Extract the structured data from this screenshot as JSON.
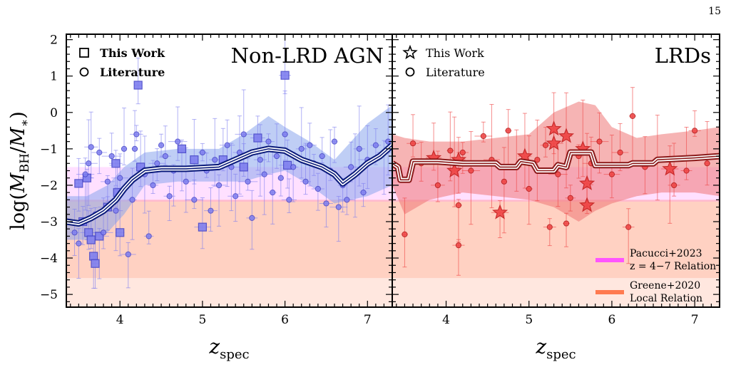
{
  "page_number": "15",
  "colors": {
    "agn_marker": "#7f7fef",
    "agn_band": "#8aa6ec",
    "agn_line": "#0a1a7a",
    "lrd_marker": "#ef4444",
    "lrd_band": "#ee7777",
    "lrd_line": "#8b1a1a",
    "pacucci": "#ff55ff",
    "greene": "#ff7a50"
  },
  "chart_data": [
    {
      "type": "scatter",
      "panel_title": "Non-LRD AGN",
      "legend": [
        {
          "marker": "square",
          "label": "This Work"
        },
        {
          "marker": "circle",
          "label": "Literature"
        }
      ],
      "xlabel": "z_spec",
      "ylabel": "log(M_BH/M_*)",
      "xlim": [
        3.35,
        7.3
      ],
      "ylim": [
        -5.35,
        2.15
      ],
      "xticks": [
        "4",
        "5",
        "6",
        "7"
      ],
      "yticks": [
        "2",
        "1",
        "0",
        "−1",
        "−2",
        "−3",
        "−4",
        "−5"
      ],
      "series": [
        {
          "name": "This Work",
          "marker": "square",
          "points": [
            [
              3.5,
              -1.95
            ],
            [
              3.55,
              -3.0
            ],
            [
              3.6,
              -1.8
            ],
            [
              3.62,
              -3.3
            ],
            [
              3.65,
              -3.5
            ],
            [
              3.68,
              -3.95
            ],
            [
              3.7,
              -4.15
            ],
            [
              3.75,
              -3.4
            ],
            [
              3.85,
              -2.6
            ],
            [
              3.95,
              -1.4
            ],
            [
              3.97,
              -2.2
            ],
            [
              4.0,
              -3.3
            ],
            [
              4.22,
              0.75
            ],
            [
              4.25,
              -1.5
            ],
            [
              4.75,
              -1.0
            ],
            [
              4.9,
              -1.3
            ],
            [
              5.0,
              -3.15
            ],
            [
              5.25,
              -1.3
            ],
            [
              5.5,
              -1.5
            ],
            [
              5.67,
              -0.7
            ],
            [
              6.0,
              1.02
            ],
            [
              6.03,
              -1.45
            ]
          ]
        },
        {
          "name": "Literature",
          "marker": "circle",
          "points": [
            [
              3.45,
              -3.3
            ],
            [
              3.5,
              -3.6
            ],
            [
              3.58,
              -1.7
            ],
            [
              3.62,
              -1.4
            ],
            [
              3.65,
              -0.95
            ],
            [
              3.7,
              -2.8
            ],
            [
              3.75,
              -1.1
            ],
            [
              3.8,
              -3.3
            ],
            [
              3.85,
              -1.9
            ],
            [
              3.9,
              -1.2
            ],
            [
              3.95,
              -2.7
            ],
            [
              4.0,
              -1.8
            ],
            [
              4.05,
              -1.0
            ],
            [
              4.1,
              -3.9
            ],
            [
              4.15,
              -2.4
            ],
            [
              4.18,
              -1.0
            ],
            [
              4.2,
              -0.6
            ],
            [
              4.3,
              -1.7
            ],
            [
              4.35,
              -3.4
            ],
            [
              4.4,
              -2.0
            ],
            [
              4.45,
              -1.4
            ],
            [
              4.5,
              -0.9
            ],
            [
              4.55,
              -1.2
            ],
            [
              4.6,
              -2.3
            ],
            [
              4.65,
              -1.6
            ],
            [
              4.7,
              -0.8
            ],
            [
              4.8,
              -1.9
            ],
            [
              4.9,
              -2.4
            ],
            [
              5.0,
              -1.1
            ],
            [
              5.05,
              -1.6
            ],
            [
              5.1,
              -2.7
            ],
            [
              5.15,
              -1.3
            ],
            [
              5.2,
              -2.0
            ],
            [
              5.3,
              -0.9
            ],
            [
              5.35,
              -1.5
            ],
            [
              5.4,
              -2.3
            ],
            [
              5.45,
              -1.1
            ],
            [
              5.5,
              -0.6
            ],
            [
              5.55,
              -1.9
            ],
            [
              5.6,
              -2.9
            ],
            [
              5.7,
              -1.3
            ],
            [
              5.75,
              -1.7
            ],
            [
              5.8,
              -0.8
            ],
            [
              5.85,
              -2.2
            ],
            [
              5.9,
              -1.2
            ],
            [
              5.95,
              -1.8
            ],
            [
              6.0,
              -0.6
            ],
            [
              6.05,
              -2.4
            ],
            [
              6.1,
              -1.5
            ],
            [
              6.2,
              -1.0
            ],
            [
              6.25,
              -1.9
            ],
            [
              6.3,
              -0.9
            ],
            [
              6.35,
              -1.4
            ],
            [
              6.4,
              -2.1
            ],
            [
              6.45,
              -1.2
            ],
            [
              6.5,
              -2.5
            ],
            [
              6.55,
              -1.6
            ],
            [
              6.6,
              -0.8
            ],
            [
              6.65,
              -2.6
            ],
            [
              6.7,
              -2.0
            ],
            [
              6.75,
              -2.4
            ],
            [
              6.8,
              -1.5
            ],
            [
              6.85,
              -1.7
            ],
            [
              6.9,
              -1.0
            ],
            [
              6.95,
              -2.2
            ],
            [
              7.0,
              -1.3
            ],
            [
              7.1,
              -0.9
            ],
            [
              7.2,
              -1.1
            ],
            [
              7.25,
              -0.8
            ]
          ]
        }
      ],
      "running_median": [
        [
          3.35,
          -3.0
        ],
        [
          3.5,
          -3.05
        ],
        [
          3.65,
          -2.9
        ],
        [
          3.8,
          -2.7
        ],
        [
          3.95,
          -2.4
        ],
        [
          4.05,
          -2.1
        ],
        [
          4.15,
          -1.85
        ],
        [
          4.3,
          -1.6
        ],
        [
          4.5,
          -1.55
        ],
        [
          4.8,
          -1.55
        ],
        [
          5.2,
          -1.5
        ],
        [
          5.4,
          -1.3
        ],
        [
          5.6,
          -1.1
        ],
        [
          5.8,
          -1.0
        ],
        [
          6.0,
          -1.05
        ],
        [
          6.2,
          -1.3
        ],
        [
          6.45,
          -1.5
        ],
        [
          6.6,
          -1.7
        ],
        [
          6.7,
          -1.95
        ],
        [
          6.85,
          -1.7
        ],
        [
          7.0,
          -1.4
        ],
        [
          7.15,
          -1.2
        ],
        [
          7.3,
          -0.9
        ]
      ],
      "running_band": [
        [
          3.35,
          -3.5,
          -2.3
        ],
        [
          3.6,
          -3.5,
          -2.3
        ],
        [
          3.85,
          -3.3,
          -2.0
        ],
        [
          4.05,
          -2.8,
          -1.5
        ],
        [
          4.3,
          -2.0,
          -1.1
        ],
        [
          4.7,
          -1.9,
          -1.0
        ],
        [
          5.2,
          -1.9,
          -1.0
        ],
        [
          5.5,
          -1.9,
          -0.6
        ],
        [
          5.8,
          -1.7,
          -0.1
        ],
        [
          6.0,
          -1.6,
          -0.4
        ],
        [
          6.3,
          -2.0,
          -0.8
        ],
        [
          6.6,
          -2.5,
          -1.3
        ],
        [
          6.8,
          -2.4,
          -0.8
        ],
        [
          7.0,
          -2.3,
          -0.3
        ],
        [
          7.3,
          -2.0,
          0.2
        ]
      ]
    },
    {
      "type": "scatter",
      "panel_title": "LRDs",
      "legend": [
        {
          "marker": "star",
          "label": "This Work"
        },
        {
          "marker": "circle",
          "label": "Literature"
        }
      ],
      "xlabel": "z_spec",
      "xlim": [
        3.35,
        7.3
      ],
      "ylim": [
        -5.35,
        2.15
      ],
      "xticks": [
        "4",
        "5",
        "6",
        "7"
      ],
      "series": [
        {
          "name": "This Work",
          "marker": "star",
          "points": [
            [
              3.85,
              -1.25
            ],
            [
              4.1,
              -1.6
            ],
            [
              4.15,
              -1.3
            ],
            [
              4.65,
              -2.75
            ],
            [
              4.95,
              -1.2
            ],
            [
              5.3,
              -0.45
            ],
            [
              5.3,
              -0.85
            ],
            [
              5.45,
              -0.65
            ],
            [
              5.65,
              -1.0
            ],
            [
              5.7,
              -1.95
            ],
            [
              5.7,
              -2.55
            ],
            [
              6.7,
              -1.55
            ]
          ]
        },
        {
          "name": "Literature",
          "marker": "circle",
          "points": [
            [
              3.5,
              -3.35
            ],
            [
              3.6,
              -0.85
            ],
            [
              3.7,
              -1.4
            ],
            [
              3.9,
              -2.0
            ],
            [
              4.05,
              -1.05
            ],
            [
              4.15,
              -3.65
            ],
            [
              4.15,
              -2.55
            ],
            [
              4.2,
              -1.1
            ],
            [
              4.3,
              -1.6
            ],
            [
              4.45,
              -0.65
            ],
            [
              4.55,
              -1.3
            ],
            [
              4.7,
              -1.9
            ],
            [
              4.75,
              -0.5
            ],
            [
              4.85,
              -1.5
            ],
            [
              5.0,
              -2.1
            ],
            [
              5.1,
              -1.3
            ],
            [
              5.2,
              -0.9
            ],
            [
              5.25,
              -3.15
            ],
            [
              5.35,
              -1.7
            ],
            [
              5.45,
              -3.05
            ],
            [
              5.5,
              -2.35
            ],
            [
              5.6,
              -1.2
            ],
            [
              5.75,
              -1.4
            ],
            [
              5.85,
              -0.8
            ],
            [
              6.0,
              -1.7
            ],
            [
              6.1,
              -1.1
            ],
            [
              6.2,
              -3.15
            ],
            [
              6.25,
              -0.1
            ],
            [
              6.4,
              -1.5
            ],
            [
              6.55,
              -1.3
            ],
            [
              6.75,
              -2.0
            ],
            [
              6.9,
              -1.6
            ],
            [
              7.0,
              -0.5
            ],
            [
              7.15,
              -1.4
            ]
          ]
        }
      ],
      "running_median": [
        [
          3.35,
          -1.4
        ],
        [
          3.42,
          -1.5
        ],
        [
          3.45,
          -1.85
        ],
        [
          3.55,
          -1.85
        ],
        [
          3.6,
          -1.35
        ],
        [
          3.9,
          -1.35
        ],
        [
          4.2,
          -1.4
        ],
        [
          4.6,
          -1.4
        ],
        [
          4.65,
          -1.5
        ],
        [
          4.85,
          -1.5
        ],
        [
          4.9,
          -1.35
        ],
        [
          5.05,
          -1.4
        ],
        [
          5.1,
          -1.6
        ],
        [
          5.3,
          -1.6
        ],
        [
          5.35,
          -1.45
        ],
        [
          5.45,
          -1.5
        ],
        [
          5.5,
          -1.1
        ],
        [
          5.75,
          -1.1
        ],
        [
          5.8,
          -1.45
        ],
        [
          6.2,
          -1.45
        ],
        [
          6.25,
          -1.4
        ],
        [
          6.5,
          -1.4
        ],
        [
          6.55,
          -1.3
        ],
        [
          7.0,
          -1.25
        ],
        [
          7.3,
          -1.2
        ]
      ],
      "running_band": [
        [
          3.35,
          -2.0,
          -0.6
        ],
        [
          3.5,
          -2.8,
          -0.7
        ],
        [
          3.8,
          -2.4,
          -0.8
        ],
        [
          4.2,
          -2.2,
          -0.8
        ],
        [
          4.6,
          -2.3,
          -0.7
        ],
        [
          5.0,
          -2.4,
          -0.6
        ],
        [
          5.3,
          -2.6,
          0.0
        ],
        [
          5.6,
          -3.0,
          0.3
        ],
        [
          5.8,
          -2.7,
          0.2
        ],
        [
          6.0,
          -2.5,
          -0.4
        ],
        [
          6.3,
          -2.3,
          -0.7
        ],
        [
          6.6,
          -2.2,
          -0.6
        ],
        [
          7.0,
          -2.2,
          -0.5
        ],
        [
          7.3,
          -2.3,
          -0.4
        ]
      ]
    }
  ],
  "relations": [
    {
      "name": "Pacucci+2023",
      "name2": "z = 4−7 Relation",
      "ylo": -2.45,
      "yhi": -1.5
    },
    {
      "name": "Greene+2020",
      "name2": "Local Relation",
      "ylo": -4.55,
      "yhi": -2.4,
      "light_ylo": -5.35
    }
  ]
}
